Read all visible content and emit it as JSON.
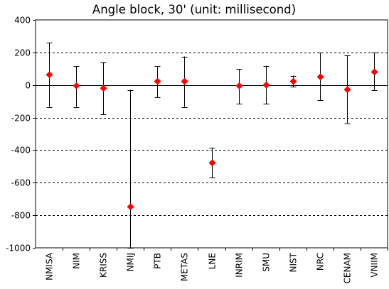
{
  "chart_data": {
    "type": "scatter",
    "title": "Angle block, 30' (unit: millisecond)",
    "xlabel": "",
    "ylabel": "",
    "ylim": [
      -1000,
      400
    ],
    "yticks": [
      400,
      200,
      0,
      -200,
      -400,
      -600,
      -800,
      -1000
    ],
    "ytick_labels": [
      "400",
      "200",
      "0",
      "-200",
      "-400",
      "-600",
      "-800",
      "-1000"
    ],
    "grid": "horizontal dashed",
    "marker_color": "#ff0000",
    "categories": [
      "NMISA",
      "NIM",
      "KRISS",
      "NMIJ",
      "PTB",
      "METAS",
      "LNE",
      "INRIM",
      "SMU",
      "NIST",
      "NRC",
      "CENAM",
      "VNIIM"
    ],
    "values": [
      63,
      -5,
      -20,
      -748,
      22,
      22,
      -478,
      -5,
      0,
      22,
      50,
      -28,
      80
    ],
    "error_low": [
      -135,
      -135,
      -180,
      -1000,
      -75,
      -135,
      -570,
      -115,
      -115,
      -12,
      -95,
      -235,
      -32
    ],
    "error_high": [
      260,
      115,
      140,
      -30,
      115,
      175,
      -385,
      98,
      118,
      57,
      198,
      180,
      198
    ]
  }
}
